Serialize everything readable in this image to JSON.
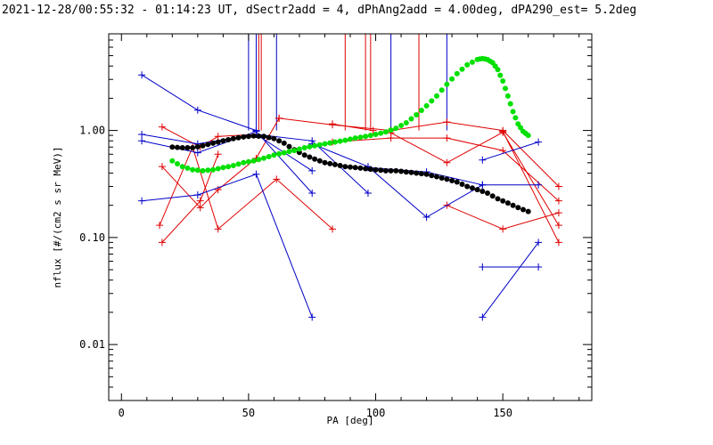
{
  "colors": {
    "background": "#ffffff",
    "axes": "#000000",
    "red": "#e00000",
    "blue": "#0000c8",
    "green": "#00e000",
    "black": "#000000"
  },
  "chart_data": {
    "type": "line",
    "title": "2021-12-28/00:55:32 - 01:14:23 UT, dSectr2add = 4, dPhAng2add = 4.00deg, dPA290_est=   5.2deg",
    "xlabel": "PA [deg]",
    "ylabel": "nflux [#/(cm2 s sr MeV)]",
    "xlim": [
      -5,
      185
    ],
    "ylim": [
      0.003,
      8.0
    ],
    "yscale": "log",
    "x_ticks": [
      0,
      50,
      100,
      150
    ],
    "x_tick_labels": [
      "0",
      "50",
      "100",
      "150"
    ],
    "y_ticks": [
      0.01,
      0.1,
      1.0
    ],
    "y_tick_labels": [
      "0.01",
      "0.10",
      "1.00"
    ],
    "grid": false,
    "legend": "none",
    "vertical_markers": [
      {
        "color": "red",
        "x": [
          54,
          55,
          88,
          96,
          98,
          117
        ]
      },
      {
        "color": "blue",
        "x": [
          50,
          53,
          61,
          106,
          128
        ]
      }
    ],
    "series": [
      {
        "color": "red",
        "marker": "plus",
        "x": [
          16,
          31,
          38,
          53
        ],
        "y": [
          1.08,
          0.7,
          0.88,
          0.92
        ]
      },
      {
        "color": "red",
        "marker": "plus",
        "x": [
          16,
          31,
          38,
          53,
          62
        ],
        "y": [
          0.46,
          0.19,
          0.28,
          0.55,
          1.3
        ]
      },
      {
        "color": "red",
        "marker": "plus",
        "x": [
          15,
          28,
          38,
          61,
          83
        ],
        "y": [
          0.13,
          0.7,
          0.12,
          0.35,
          0.12
        ]
      },
      {
        "color": "red",
        "marker": "plus",
        "x": [
          16,
          31,
          38
        ],
        "y": [
          0.09,
          0.22,
          0.6
        ]
      },
      {
        "color": "red",
        "marker": "plus",
        "x": [
          83,
          99
        ],
        "y": [
          1.15,
          1.0
        ]
      },
      {
        "color": "red",
        "marker": "plus",
        "x": [
          62,
          83,
          106,
          128,
          150,
          172
        ],
        "y": [
          1.3,
          1.13,
          1.0,
          1.2,
          1.0,
          0.3
        ]
      },
      {
        "color": "red",
        "marker": "plus",
        "x": [
          83,
          106,
          128,
          150,
          172
        ],
        "y": [
          0.78,
          0.85,
          0.85,
          0.65,
          0.22
        ]
      },
      {
        "color": "red",
        "marker": "plus",
        "x": [
          106,
          128,
          150,
          172
        ],
        "y": [
          0.95,
          0.5,
          0.96,
          0.13
        ]
      },
      {
        "color": "red",
        "marker": "plus",
        "x": [
          128,
          150,
          172
        ],
        "y": [
          0.2,
          0.12,
          0.17
        ]
      },
      {
        "color": "red",
        "marker": "plus",
        "x": [
          150,
          172
        ],
        "y": [
          0.98,
          0.09
        ]
      },
      {
        "color": "blue",
        "marker": "plus",
        "x": [
          8,
          30,
          53
        ],
        "y": [
          3.3,
          1.55,
          1.0
        ]
      },
      {
        "color": "blue",
        "marker": "plus",
        "x": [
          8,
          30,
          53,
          75
        ],
        "y": [
          0.92,
          0.75,
          0.92,
          0.42
        ]
      },
      {
        "color": "blue",
        "marker": "plus",
        "x": [
          8,
          30,
          53,
          75
        ],
        "y": [
          0.8,
          0.62,
          0.98,
          0.26
        ]
      },
      {
        "color": "blue",
        "marker": "plus",
        "x": [
          8,
          30,
          53,
          75
        ],
        "y": [
          0.22,
          0.25,
          0.39,
          0.018
        ]
      },
      {
        "color": "blue",
        "marker": "plus",
        "x": [
          53,
          75,
          97
        ],
        "y": [
          0.92,
          0.8,
          0.26
        ]
      },
      {
        "color": "blue",
        "marker": "plus",
        "x": [
          75,
          97,
          120,
          142
        ],
        "y": [
          0.75,
          0.46,
          0.155,
          0.31
        ]
      },
      {
        "color": "blue",
        "marker": "plus",
        "x": [
          97,
          120,
          142,
          164
        ],
        "y": [
          0.45,
          0.41,
          0.31,
          0.31
        ]
      },
      {
        "color": "blue",
        "marker": "plus",
        "x": [
          142,
          164
        ],
        "y": [
          0.53,
          0.78
        ]
      },
      {
        "color": "blue",
        "marker": "plus",
        "x": [
          142,
          164
        ],
        "y": [
          0.053,
          0.053
        ]
      },
      {
        "color": "blue",
        "marker": "plus",
        "x": [
          142,
          164
        ],
        "y": [
          0.018,
          0.09
        ]
      },
      {
        "color": "black",
        "marker": "dot",
        "x": [
          20,
          24,
          28,
          32,
          36,
          40,
          44,
          48,
          52,
          56,
          60,
          64,
          68,
          72,
          76,
          80,
          84,
          88,
          92,
          96,
          100,
          104,
          108,
          112,
          116,
          120,
          124,
          128,
          132,
          136,
          140,
          144,
          148,
          152,
          156,
          160
        ],
        "y": [
          0.7,
          0.69,
          0.69,
          0.72,
          0.76,
          0.8,
          0.84,
          0.87,
          0.89,
          0.88,
          0.84,
          0.76,
          0.66,
          0.59,
          0.54,
          0.5,
          0.48,
          0.46,
          0.45,
          0.44,
          0.43,
          0.42,
          0.42,
          0.41,
          0.4,
          0.39,
          0.37,
          0.35,
          0.33,
          0.3,
          0.28,
          0.26,
          0.23,
          0.21,
          0.19,
          0.175
        ]
      },
      {
        "color": "green",
        "marker": "dot",
        "x": [
          20,
          24,
          28,
          32,
          36,
          40,
          44,
          48,
          52,
          56,
          60,
          64,
          68,
          72,
          76,
          80,
          84,
          88,
          92,
          96,
          100,
          104,
          108,
          112,
          116,
          120,
          124,
          128,
          132,
          136,
          140,
          142,
          144,
          146,
          148,
          150,
          152,
          154,
          156,
          158,
          160
        ],
        "y": [
          0.52,
          0.46,
          0.43,
          0.42,
          0.43,
          0.45,
          0.47,
          0.5,
          0.52,
          0.55,
          0.59,
          0.62,
          0.65,
          0.69,
          0.72,
          0.75,
          0.78,
          0.81,
          0.85,
          0.88,
          0.92,
          0.97,
          1.05,
          1.18,
          1.4,
          1.7,
          2.1,
          2.7,
          3.4,
          4.1,
          4.6,
          4.7,
          4.6,
          4.3,
          3.7,
          2.9,
          2.1,
          1.5,
          1.15,
          0.98,
          0.9
        ]
      }
    ]
  }
}
